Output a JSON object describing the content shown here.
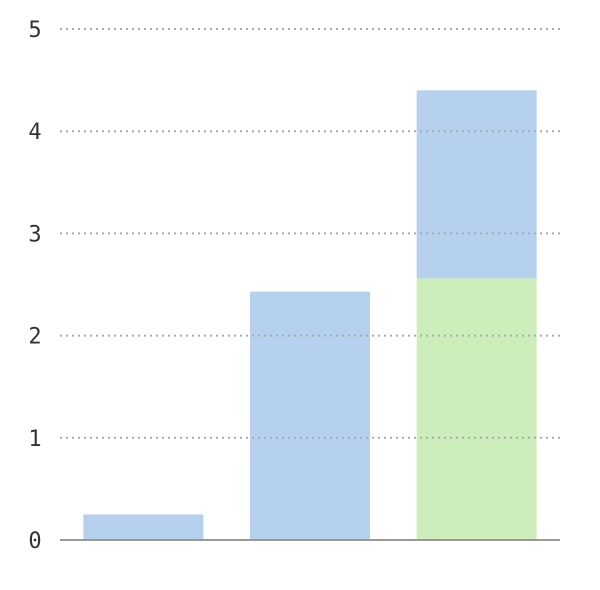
{
  "chart_data": {
    "type": "stacked-bar",
    "categories": [
      null,
      null,
      null
    ],
    "series": [
      {
        "color": "#cdeebb",
        "values": [
          0,
          0,
          2.56
        ]
      },
      {
        "color": "#b6d1ee",
        "values": [
          0.25,
          2.43,
          1.84
        ]
      }
    ],
    "ylim": [
      0,
      5
    ],
    "yticks": [
      0,
      1,
      2,
      3,
      4,
      5
    ],
    "grid": true
  }
}
